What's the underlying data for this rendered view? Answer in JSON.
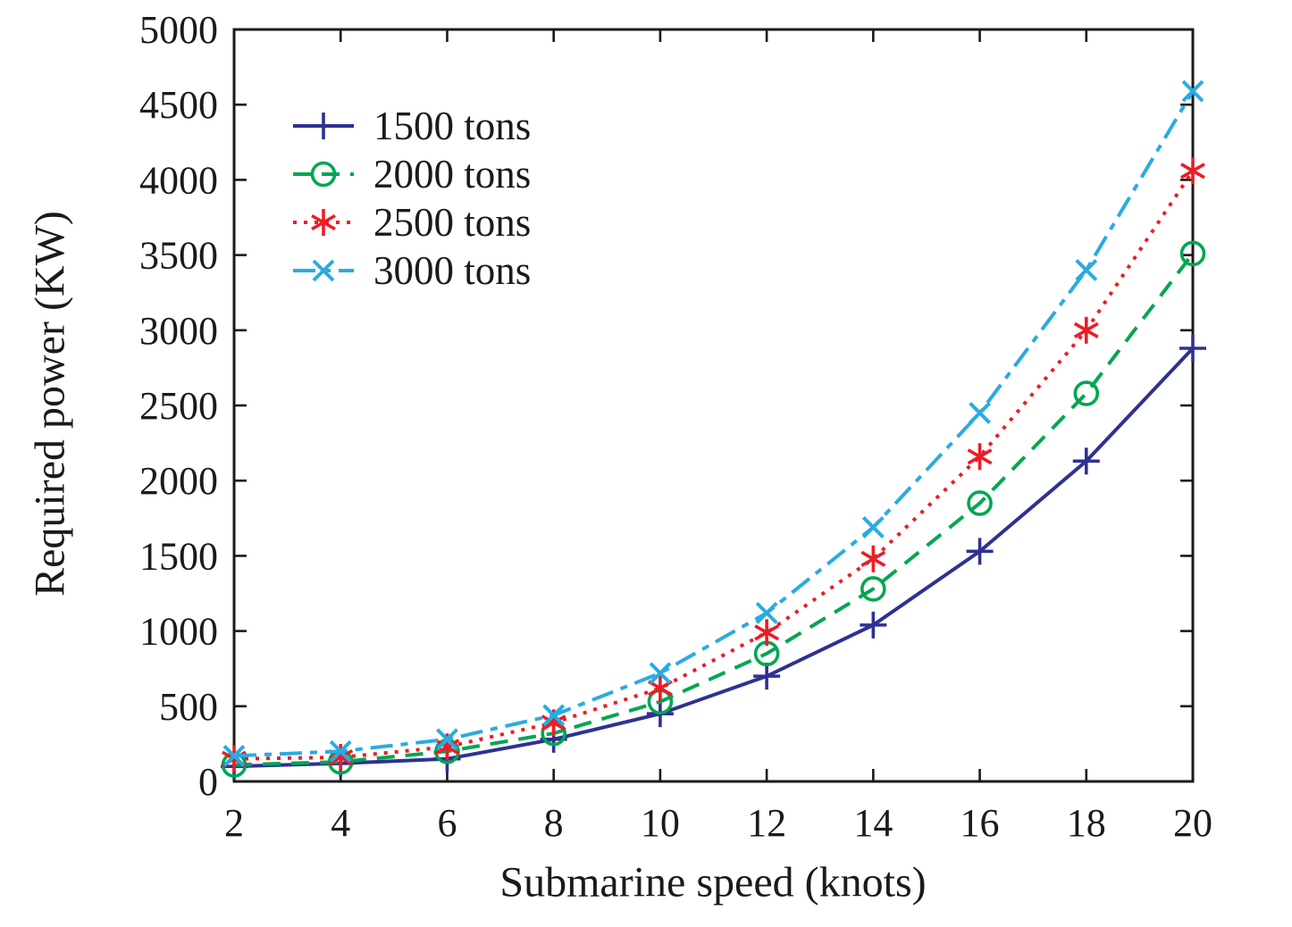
{
  "chart_data": {
    "type": "line",
    "title": "",
    "xlabel": "Submarine speed (knots)",
    "ylabel": "Required power (KW)",
    "x": [
      2,
      4,
      6,
      8,
      10,
      12,
      14,
      16,
      18,
      20
    ],
    "xlim": [
      2,
      20
    ],
    "ylim": [
      0,
      5000
    ],
    "xticks": [
      2,
      4,
      6,
      8,
      10,
      12,
      14,
      16,
      18,
      20
    ],
    "yticks": [
      0,
      500,
      1000,
      1500,
      2000,
      2500,
      3000,
      3500,
      4000,
      4500,
      5000
    ],
    "grid": false,
    "legend_position": "upper-left-inside",
    "axis_color": "#1a1a1a",
    "background": "#ffffff",
    "series": [
      {
        "name": "1500 tons",
        "color": "#2e3192",
        "line_style": "solid",
        "marker": "plus",
        "values": [
          100,
          120,
          150,
          280,
          450,
          700,
          1040,
          1530,
          2130,
          2880
        ]
      },
      {
        "name": "2000 tons",
        "color": "#00a651",
        "line_style": "dashed",
        "marker": "circle",
        "values": [
          110,
          130,
          200,
          320,
          530,
          850,
          1280,
          1850,
          2580,
          3510
        ]
      },
      {
        "name": "2500 tons",
        "color": "#ed1c24",
        "line_style": "dotted",
        "marker": "asterisk",
        "values": [
          150,
          160,
          230,
          390,
          620,
          990,
          1480,
          2160,
          3000,
          4060
        ]
      },
      {
        "name": "3000 tons",
        "color": "#29abe2",
        "line_style": "dashdot",
        "marker": "x",
        "values": [
          170,
          200,
          280,
          440,
          720,
          1120,
          1690,
          2450,
          3400,
          4590
        ]
      }
    ]
  }
}
